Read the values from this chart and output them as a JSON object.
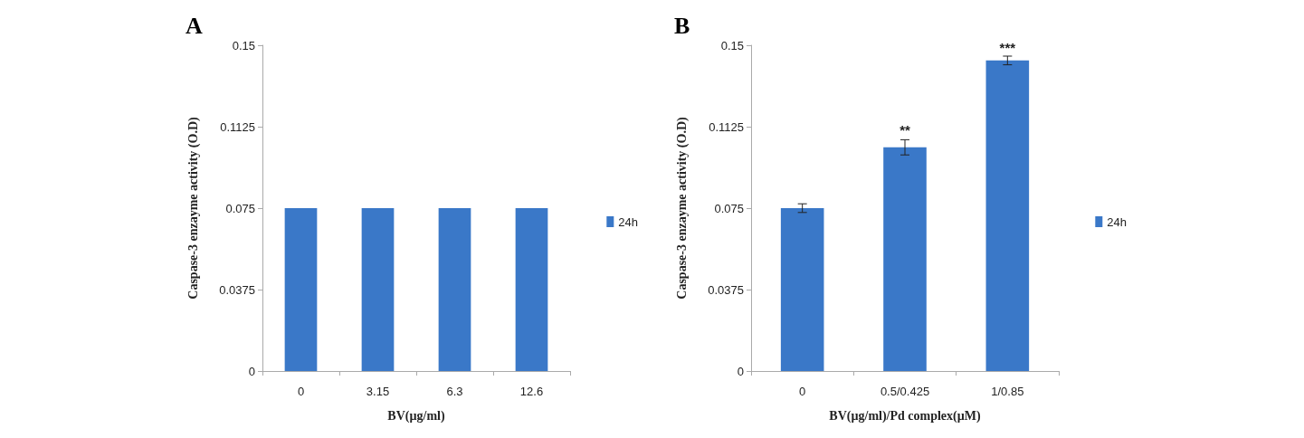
{
  "chart_data": [
    {
      "type": "bar",
      "title": "A",
      "xlabel": "BV(µg/ml)",
      "ylabel": "Caspase-3 enzayme activity (O.D)",
      "categories": [
        "0",
        "3.15",
        "6.3",
        "12.6"
      ],
      "series": [
        {
          "name": "24h",
          "color": "#3a78c8",
          "values": [
            0.075,
            0.075,
            0.075,
            0.075
          ]
        }
      ],
      "ylim": [
        0,
        0.15
      ],
      "yticks": [
        0,
        0.0375,
        0.075,
        0.1125,
        0.15
      ],
      "grid": false,
      "legend": "right"
    },
    {
      "type": "bar",
      "title": "B",
      "xlabel": "BV(µg/ml)/Pd complex(µM)",
      "ylabel": "Caspase-3 enzayme activity (O.D)",
      "categories": [
        "0",
        "0.5/0.425",
        "1/0.85"
      ],
      "series": [
        {
          "name": "24h",
          "color": "#3a78c8",
          "values": [
            0.075,
            0.103,
            0.143
          ],
          "errors": [
            0.002,
            0.0035,
            0.002
          ]
        }
      ],
      "ylim": [
        0,
        0.15
      ],
      "yticks": [
        0,
        0.0375,
        0.075,
        0.1125,
        0.15
      ],
      "grid": false,
      "legend": "right",
      "annotations": [
        {
          "text": "**",
          "x": "0.5/0.425",
          "y": 0.108
        },
        {
          "text": "***",
          "x": "1/0.85",
          "y": 0.146
        }
      ]
    }
  ]
}
